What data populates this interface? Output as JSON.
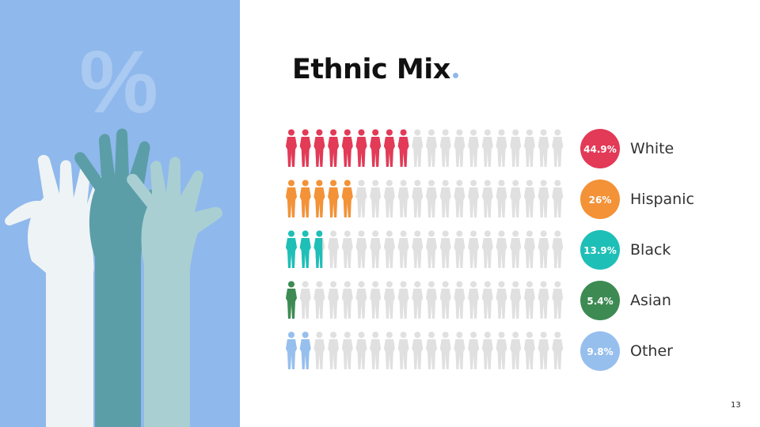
{
  "slide": {
    "title": "Ethnic Mix",
    "title_dot_color": "#8fb8ec",
    "page_number": "13",
    "decor_symbol": "%",
    "panel_color": "#8fb8ec",
    "hands_colors": [
      "#eef3f5",
      "#5b9ea8",
      "#a9cfd3"
    ]
  },
  "chart_data": {
    "type": "pictogram",
    "unit": "%",
    "icons_per_row": 20,
    "inactive_color": "#e0e0e0",
    "categories": [
      "White",
      "Hispanic",
      "Black",
      "Asian",
      "Other"
    ],
    "values": [
      44.9,
      26,
      13.9,
      5.4,
      9.8
    ],
    "value_labels": [
      "44.9%",
      "26%",
      "13.9%",
      "5.4%",
      "9.8%"
    ],
    "colors": [
      "#e23a57",
      "#f39237",
      "#1ebfb7",
      "#3d8b52",
      "#97bfee"
    ]
  }
}
